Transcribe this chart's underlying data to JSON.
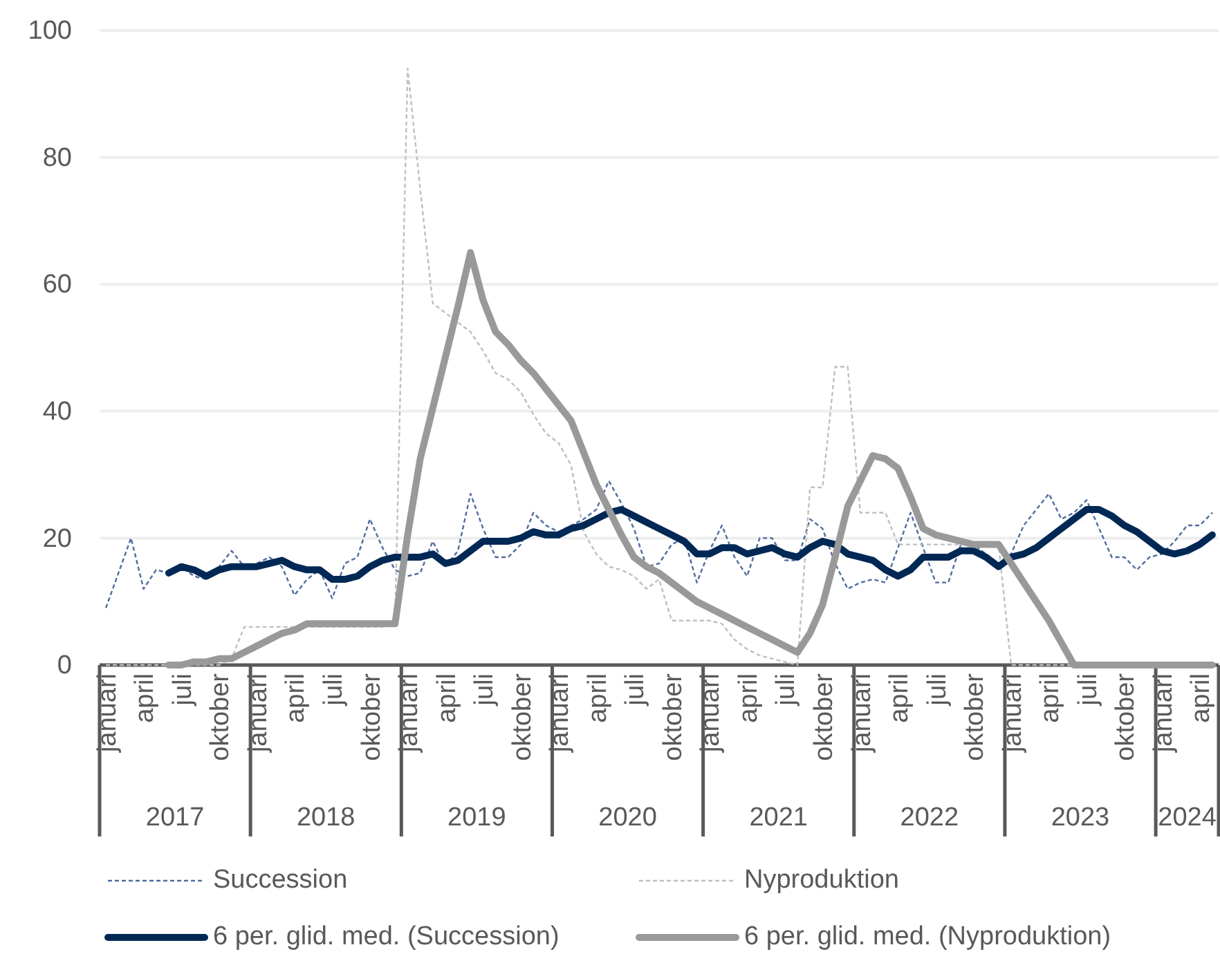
{
  "chart_data": {
    "type": "line",
    "categories": [
      "januari",
      null,
      null,
      "april",
      null,
      null,
      "juli",
      null,
      null,
      "oktober",
      null,
      null,
      "januari",
      null,
      null,
      "april",
      null,
      null,
      "juli",
      null,
      null,
      "oktober",
      null,
      null,
      "januari",
      null,
      null,
      "april",
      null,
      null,
      "juli",
      null,
      null,
      "oktober",
      null,
      null,
      "januari",
      null,
      null,
      "april",
      null,
      null,
      "juli",
      null,
      null,
      "oktober",
      null,
      null,
      "januari",
      null,
      null,
      "april",
      null,
      null,
      "juli",
      null,
      null,
      "oktober",
      null,
      null,
      "januari",
      null,
      null,
      "april",
      null,
      null,
      "juli",
      null,
      null,
      "oktober",
      null,
      null,
      "januari",
      null,
      null,
      "april",
      null,
      null,
      "juli",
      null,
      null,
      "oktober",
      null,
      null,
      "januari",
      null,
      null,
      "april",
      null
    ],
    "annotations": [
      "2017",
      "2018",
      "2019",
      "2020",
      "2021",
      "2022",
      "2023",
      "2024"
    ],
    "series": [
      {
        "name": "Succession",
        "color": "#4f6c9e",
        "line_style": "dashed",
        "values": [
          9,
          14.5,
          20,
          12,
          15,
          14.5,
          15.5,
          14,
          13.5,
          15.5,
          18,
          15.5,
          16,
          17,
          15.5,
          11,
          13.5,
          15,
          10.5,
          16,
          17,
          23,
          18.5,
          15,
          14,
          14.5,
          19.5,
          15.5,
          18,
          27,
          21.5,
          17,
          17,
          19,
          24,
          22,
          21,
          22,
          23,
          24.5,
          29,
          25.5,
          21.5,
          15.5,
          16,
          19,
          20,
          13,
          18,
          22,
          17,
          14,
          20,
          20,
          16.5,
          16.5,
          23,
          21.5,
          16,
          12,
          13,
          13.5,
          13,
          18.5,
          24,
          18.5,
          13,
          13,
          19,
          19,
          17.5,
          16,
          17.5,
          22,
          24.5,
          27,
          23,
          24,
          26,
          21.5,
          17,
          17,
          15,
          17,
          17.5,
          19.5,
          22,
          22,
          24
        ]
      },
      {
        "name": "Nyproduktion",
        "color": "#bfbfbf",
        "line_style": "dashed",
        "values": [
          0,
          0,
          0,
          0,
          0,
          0,
          0,
          0,
          0,
          0,
          1,
          6,
          6,
          6,
          6,
          6,
          6,
          6,
          6,
          6,
          6,
          6,
          6,
          7,
          94,
          75,
          57,
          55.5,
          54,
          52.5,
          49.5,
          46,
          45,
          43,
          39.5,
          36.5,
          35,
          31.5,
          21,
          17.5,
          15.5,
          15,
          14,
          12,
          13.5,
          7,
          7,
          7,
          7,
          6.5,
          4,
          2.5,
          1.5,
          1,
          0.5,
          0,
          28,
          28,
          47,
          47,
          24,
          24,
          24,
          19,
          19,
          19,
          19,
          19,
          19,
          19,
          19,
          19,
          0,
          0,
          0,
          0,
          0,
          0,
          0,
          0,
          0,
          0,
          0,
          0,
          0,
          0,
          0,
          0,
          0
        ]
      },
      {
        "name": "6 per. glid. med. (Succession)",
        "color": "#002855",
        "line_style": "solid",
        "values": [
          null,
          null,
          null,
          null,
          null,
          14.5,
          15.5,
          15,
          14,
          15,
          15.5,
          15.5,
          15.5,
          16,
          16.5,
          15.5,
          15,
          15,
          13.5,
          13.5,
          14,
          15.5,
          16.5,
          17,
          17,
          17,
          17.5,
          16,
          16.5,
          18,
          19.5,
          19.5,
          19.5,
          20,
          21,
          20.5,
          20.5,
          21.5,
          22,
          23,
          24,
          24.5,
          23.5,
          22.5,
          21.5,
          20.5,
          19.5,
          17.5,
          17.5,
          18.5,
          18.5,
          17.5,
          18,
          18.5,
          17.5,
          17,
          18.5,
          19.5,
          19,
          17.5,
          17,
          16.5,
          15,
          14,
          15,
          17,
          17,
          17,
          18,
          18,
          17,
          15.5,
          17,
          17.5,
          18.5,
          20,
          21.5,
          23,
          24.5,
          24.5,
          23.5,
          22,
          21,
          19.5,
          18,
          17.5,
          18,
          19,
          20.5
        ]
      },
      {
        "name": "6 per. glid. med. (Nyproduktion)",
        "color": "#999999",
        "line_style": "solid",
        "values": [
          null,
          null,
          null,
          null,
          null,
          0,
          0,
          0.5,
          0.5,
          1,
          1,
          2,
          3,
          4,
          5,
          5.5,
          6.5,
          6.5,
          6.5,
          6.5,
          6.5,
          6.5,
          6.5,
          6.5,
          20.5,
          32.5,
          40.5,
          48.5,
          56.5,
          65,
          57.5,
          52.5,
          50.5,
          48,
          46,
          43.5,
          41,
          38.5,
          33.5,
          28.5,
          24.5,
          20.5,
          17,
          15.5,
          14.5,
          13,
          11.5,
          10,
          9,
          8,
          7,
          6,
          5,
          4,
          3,
          2,
          5,
          9.5,
          17,
          25,
          29,
          33,
          32.5,
          31,
          26.5,
          21.5,
          20.5,
          20,
          19.5,
          19,
          19,
          19,
          16,
          13,
          10,
          7,
          3.5,
          0,
          0,
          0,
          0,
          0,
          0,
          0,
          0,
          0,
          0,
          0,
          0
        ]
      }
    ],
    "ylim": [
      0,
      100
    ],
    "yticks": [
      0,
      20,
      40,
      60,
      80,
      100
    ],
    "grid": "y",
    "legend": "bottom"
  }
}
